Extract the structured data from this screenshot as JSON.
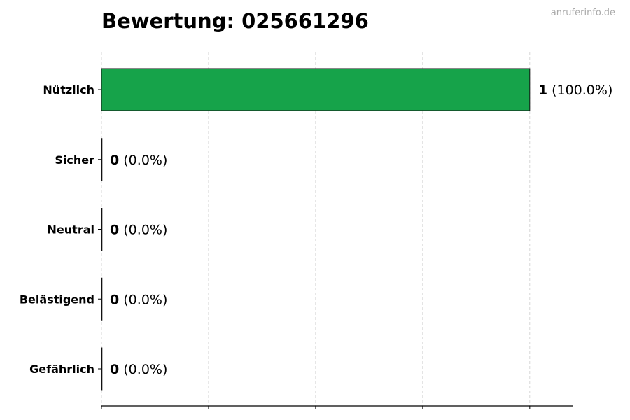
{
  "chart_data": {
    "type": "bar",
    "orientation": "horizontal",
    "title": "Bewertung: 025661296",
    "watermark": "anruferinfo.de",
    "categories": [
      "Nützlich",
      "Sicher",
      "Neutral",
      "Belästigend",
      "Gefährlich"
    ],
    "values": [
      1,
      0,
      0,
      0,
      0
    ],
    "labels": [
      {
        "count": "1",
        "percent": "(100.0%)"
      },
      {
        "count": "0",
        "percent": "(0.0%)"
      },
      {
        "count": "0",
        "percent": "(0.0%)"
      },
      {
        "count": "0",
        "percent": "(0.0%)"
      },
      {
        "count": "0",
        "percent": "(0.0%)"
      }
    ],
    "colors": [
      "#16a34a",
      "#22c55e",
      "#9ca3af",
      "#f97316",
      "#dc2626"
    ],
    "xlim": [
      0,
      1.1
    ],
    "xticks": [
      0,
      0.25,
      0.5,
      0.75,
      1.0
    ],
    "grid": "x-dashed",
    "xlabel": "",
    "ylabel": ""
  }
}
